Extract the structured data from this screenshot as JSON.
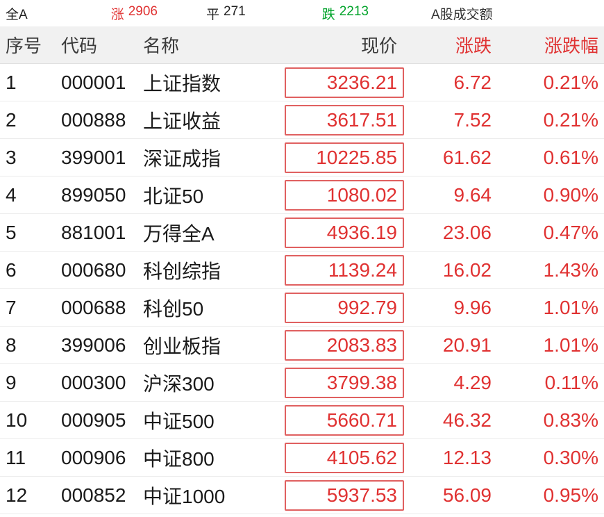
{
  "topbar": {
    "all_label": "全A",
    "up_label": "涨",
    "up_count": "2906",
    "flat_label": "平",
    "flat_count": "271",
    "down_label": "跌",
    "down_count": "2213",
    "turnover_label": "A股成交额"
  },
  "table": {
    "headers": [
      "序号",
      "代码",
      "名称",
      "现价",
      "涨跌",
      "涨跌幅"
    ],
    "rows": [
      {
        "no": "1",
        "code": "000001",
        "name": "上证指数",
        "price": "3236.21",
        "change": "6.72",
        "pct": "0.21%"
      },
      {
        "no": "2",
        "code": "000888",
        "name": "上证收益",
        "price": "3617.51",
        "change": "7.52",
        "pct": "0.21%"
      },
      {
        "no": "3",
        "code": "399001",
        "name": "深证成指",
        "price": "10225.85",
        "change": "61.62",
        "pct": "0.61%"
      },
      {
        "no": "4",
        "code": "899050",
        "name": "北证50",
        "price": "1080.02",
        "change": "9.64",
        "pct": "0.90%"
      },
      {
        "no": "5",
        "code": "881001",
        "name": "万得全A",
        "price": "4936.19",
        "change": "23.06",
        "pct": "0.47%"
      },
      {
        "no": "6",
        "code": "000680",
        "name": "科创综指",
        "price": "1139.24",
        "change": "16.02",
        "pct": "1.43%"
      },
      {
        "no": "7",
        "code": "000688",
        "name": "科创50",
        "price": "992.79",
        "change": "9.96",
        "pct": "1.01%"
      },
      {
        "no": "8",
        "code": "399006",
        "name": "创业板指",
        "price": "2083.83",
        "change": "20.91",
        "pct": "1.01%"
      },
      {
        "no": "9",
        "code": "000300",
        "name": "沪深300",
        "price": "3799.38",
        "change": "4.29",
        "pct": "0.11%"
      },
      {
        "no": "10",
        "code": "000905",
        "name": "中证500",
        "price": "5660.71",
        "change": "46.32",
        "pct": "0.83%"
      },
      {
        "no": "11",
        "code": "000906",
        "name": "中证800",
        "price": "4105.62",
        "change": "12.13",
        "pct": "0.30%"
      },
      {
        "no": "12",
        "code": "000852",
        "name": "中证1000",
        "price": "5937.53",
        "change": "56.09",
        "pct": "0.95%"
      }
    ]
  },
  "colors": {
    "up": "#e03232",
    "down": "#00a32a",
    "box_border": "#e06060",
    "header_bg": "#f1f1f1"
  }
}
